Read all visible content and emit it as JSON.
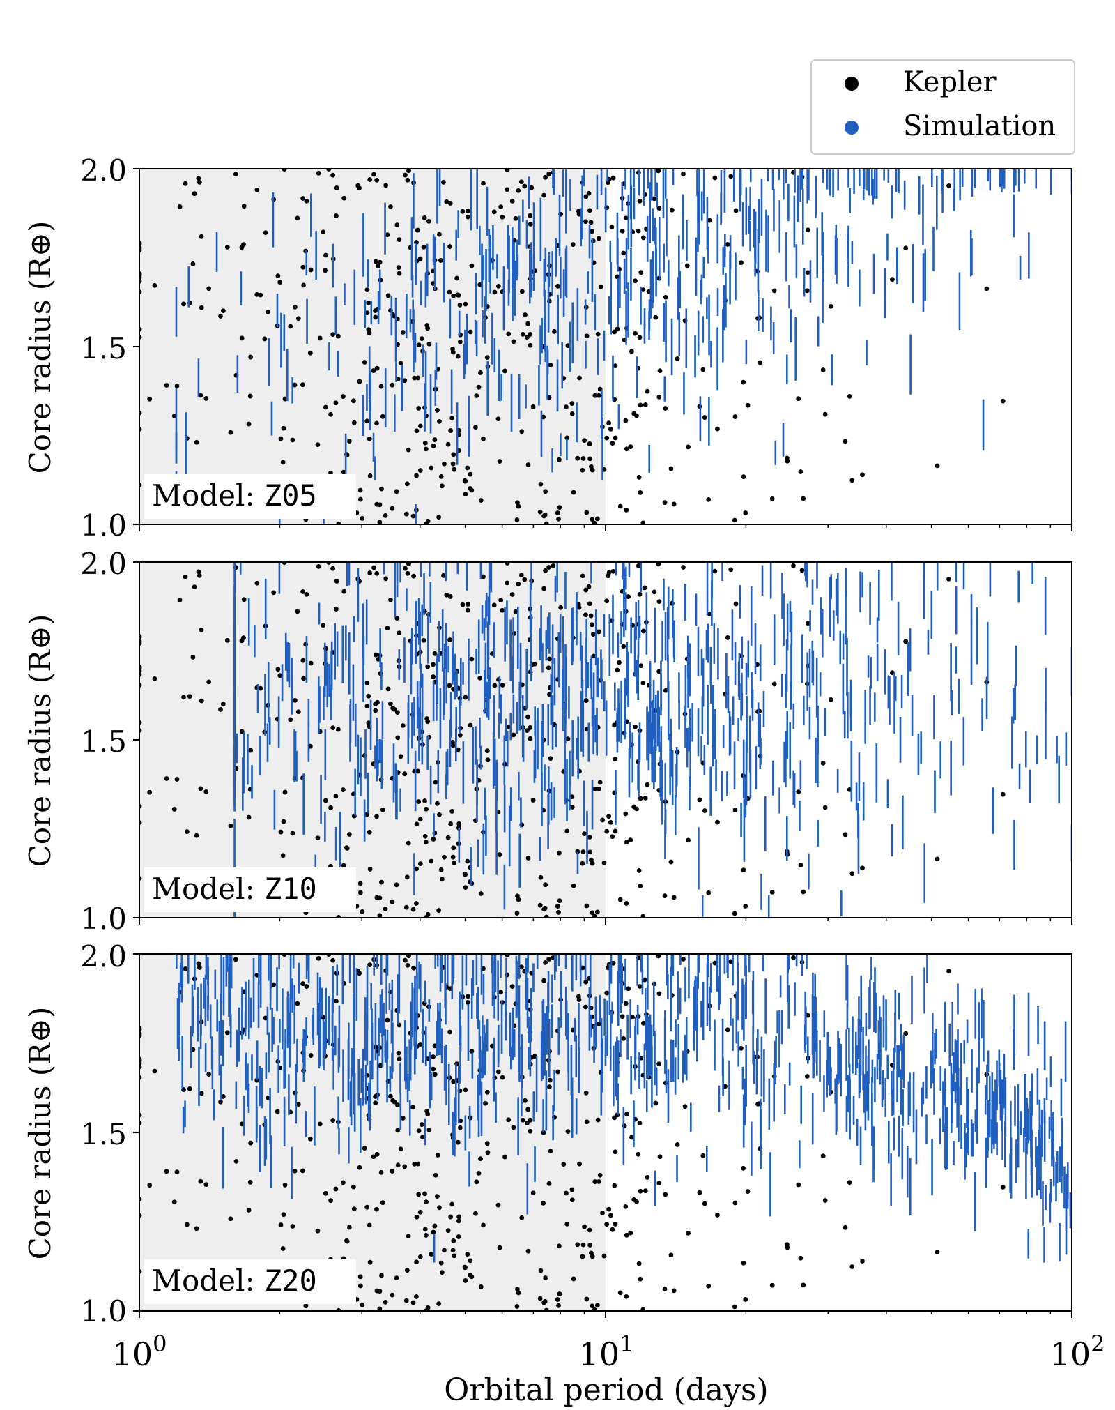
{
  "figure": {
    "legend": {
      "entries": [
        {
          "label": "Kepler",
          "color": "#000000"
        },
        {
          "label": "Simulation",
          "color": "#1f5fbf"
        }
      ],
      "placement": "top-right"
    },
    "shaded_region": {
      "x_from": 1,
      "x_to": 10,
      "color": "#eeeeee"
    }
  },
  "chart_data": [
    {
      "type": "scatter",
      "panel_label": "Model: ",
      "model_name": "Z05",
      "ylabel": "Core radius (R⊕)",
      "xlabel": "",
      "xscale": "log",
      "xlim": [
        1,
        100
      ],
      "ylim": [
        1.0,
        2.0
      ],
      "yticks": [
        "1.0",
        "1.5",
        "2.0"
      ],
      "series": [
        {
          "name": "Kepler",
          "marker": "dot",
          "color": "#000000",
          "count_shown": 500,
          "x_range": [
            1,
            95
          ],
          "y_range": [
            1.0,
            2.0
          ]
        },
        {
          "name": "Simulation",
          "marker": "errorbar",
          "color": "#1f5fbf",
          "count_shown": 420,
          "x_range": [
            1.2,
            100
          ],
          "y_range": [
            1.0,
            2.0
          ]
        }
      ]
    },
    {
      "type": "scatter",
      "panel_label": "Model: ",
      "model_name": "Z10",
      "ylabel": "Core radius (R⊕)",
      "xlabel": "",
      "xscale": "log",
      "xlim": [
        1,
        100
      ],
      "ylim": [
        1.0,
        2.0
      ],
      "yticks": [
        "1.0",
        "1.5",
        "2.0"
      ],
      "series": [
        {
          "name": "Kepler",
          "marker": "dot",
          "color": "#000000",
          "count_shown": 500,
          "x_range": [
            1,
            95
          ],
          "y_range": [
            1.0,
            2.0
          ]
        },
        {
          "name": "Simulation",
          "marker": "errorbar",
          "color": "#1f5fbf",
          "count_shown": 650,
          "x_range": [
            1.6,
            100
          ],
          "y_range": [
            1.0,
            2.0
          ]
        }
      ]
    },
    {
      "type": "scatter",
      "panel_label": "Model: ",
      "model_name": "Z20",
      "ylabel": "Core radius (R⊕)",
      "xlabel": "Orbital period (days)",
      "xscale": "log",
      "xlim": [
        1,
        100
      ],
      "ylim": [
        1.0,
        2.0
      ],
      "yticks": [
        "1.0",
        "1.5",
        "2.0"
      ],
      "xticks": [
        {
          "base": "10",
          "exp": "0"
        },
        {
          "base": "10",
          "exp": "1"
        },
        {
          "base": "10",
          "exp": "2"
        }
      ],
      "series": [
        {
          "name": "Kepler",
          "marker": "dot",
          "color": "#000000",
          "count_shown": 500,
          "x_range": [
            1,
            95
          ],
          "y_range": [
            1.0,
            2.0
          ]
        },
        {
          "name": "Simulation",
          "marker": "errorbar",
          "color": "#1f5fbf",
          "count_shown": 800,
          "x_range": [
            1.2,
            100
          ],
          "y_range": [
            1.0,
            2.0
          ]
        }
      ]
    }
  ]
}
